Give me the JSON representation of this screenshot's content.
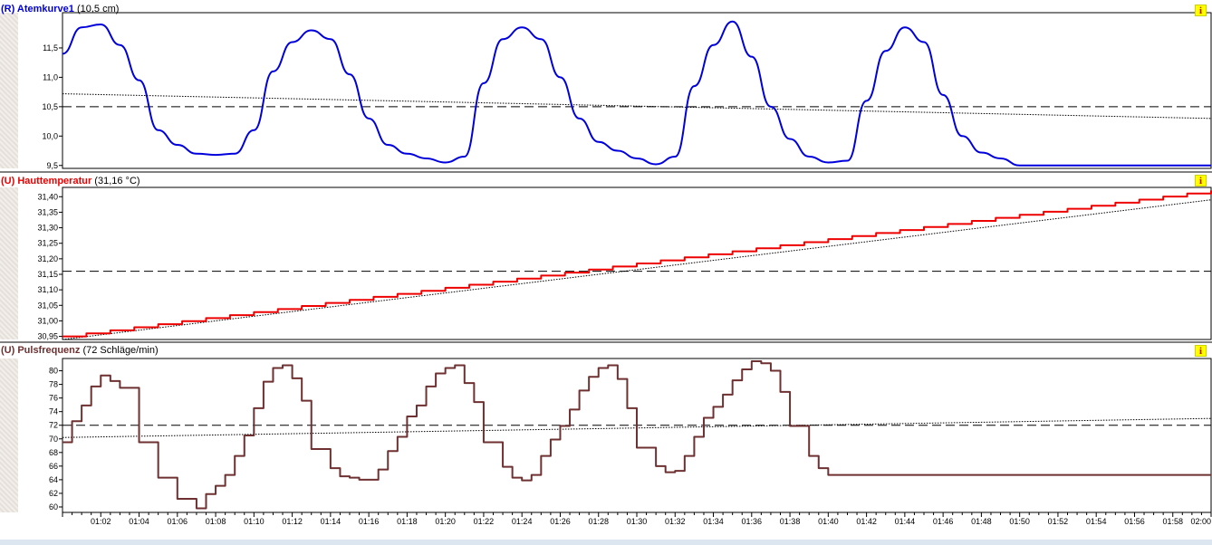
{
  "panels": [
    {
      "tag": "(R) Atemkurve1",
      "value_label": "(10,5 cm)",
      "color": "#0000dd",
      "info_label": "i",
      "marker_color": "#1a3cd8"
    },
    {
      "tag": "(U) Hauttemperatur",
      "value_label": "(31,16 °C)",
      "color": "#ee0000",
      "info_label": "i",
      "marker_color": "#d8c800"
    },
    {
      "tag": "(U) Pulsfrequenz",
      "value_label": "(72 Schläge/min)",
      "color": "#6e3030",
      "info_label": "i",
      "marker_color": "#5a2a1a"
    }
  ],
  "chart_data": [
    {
      "type": "line",
      "title": "(R) Atemkurve1",
      "unit": "cm",
      "mean": 10.5,
      "ylim": [
        9.45,
        12.1
      ],
      "yticks": [
        "9,5",
        "10,0",
        "10,5",
        "11,0",
        "11,5"
      ],
      "ytick_values": [
        9.5,
        10.0,
        10.5,
        11.0,
        11.5
      ],
      "x": [
        60,
        61,
        62,
        63,
        64,
        65,
        66,
        67,
        68,
        69,
        70,
        71,
        72,
        73,
        74,
        75,
        76,
        77,
        78,
        79,
        80,
        81,
        82,
        83,
        84,
        85,
        86,
        87,
        88,
        89,
        90,
        91,
        92,
        93,
        94,
        95,
        96,
        97,
        98,
        99,
        100,
        101,
        102,
        103,
        104,
        105,
        106,
        107,
        108,
        109,
        110,
        111,
        112,
        113,
        114,
        115,
        116,
        117,
        118,
        119,
        120
      ],
      "values": [
        11.4,
        11.85,
        11.9,
        11.55,
        10.95,
        10.1,
        9.85,
        9.7,
        9.68,
        9.7,
        10.1,
        11.1,
        11.6,
        11.8,
        11.65,
        11.05,
        10.3,
        9.85,
        9.7,
        9.62,
        9.55,
        9.65,
        10.9,
        11.65,
        11.85,
        11.65,
        11.0,
        10.3,
        9.9,
        9.75,
        9.62,
        9.52,
        9.65,
        10.85,
        11.55,
        11.95,
        11.35,
        10.5,
        9.95,
        9.65,
        9.55,
        9.58,
        10.6,
        11.45,
        11.85,
        11.6,
        10.7,
        10.0,
        9.72,
        9.62,
        9.5,
        9.5,
        9.5,
        9.5,
        9.5,
        9.5,
        9.5,
        9.5,
        9.5,
        9.5,
        9.5
      ],
      "trend": [
        10.72,
        10.3
      ]
    },
    {
      "type": "line",
      "title": "(U) Hauttemperatur",
      "unit": "°C",
      "mean": 31.16,
      "ylim": [
        30.94,
        31.43
      ],
      "yticks": [
        "30,95",
        "31,00",
        "31,05",
        "31,10",
        "31,15",
        "31,20",
        "31,25",
        "31,30",
        "31,35",
        "31,40"
      ],
      "ytick_values": [
        30.95,
        31.0,
        31.05,
        31.1,
        31.15,
        31.2,
        31.25,
        31.3,
        31.35,
        31.4
      ],
      "x": [
        60,
        120
      ],
      "values": [
        30.95,
        31.42
      ],
      "trend": [
        30.94,
        31.39
      ]
    },
    {
      "type": "line",
      "title": "(U) Pulsfrequenz",
      "unit": "Schläge/min",
      "mean": 72,
      "ylim": [
        59.2,
        81.8
      ],
      "yticks": [
        "60",
        "62",
        "64",
        "66",
        "68",
        "70",
        "72",
        "74",
        "76",
        "78",
        "80"
      ],
      "ytick_values": [
        60,
        62,
        64,
        66,
        68,
        70,
        72,
        74,
        76,
        78,
        80
      ],
      "x": [
        60,
        60.5,
        61,
        61.5,
        62,
        62.5,
        63,
        63.5,
        64,
        64.5,
        65,
        65.5,
        66,
        66.5,
        67,
        67.5,
        68,
        68.5,
        69,
        69.5,
        70,
        70.5,
        71,
        71.5,
        72,
        72.5,
        73,
        73.5,
        74,
        74.5,
        75,
        75.5,
        76,
        76.5,
        77,
        77.5,
        78,
        78.5,
        79,
        79.5,
        80,
        80.5,
        81,
        81.5,
        82,
        82.5,
        83,
        83.5,
        84,
        84.5,
        85,
        85.5,
        86,
        86.5,
        87,
        87.5,
        88,
        88.5,
        89,
        89.5,
        90,
        90.5,
        91,
        91.5,
        92,
        92.5,
        93,
        93.5,
        94,
        94.5,
        95,
        95.5,
        96,
        96.5,
        97,
        97.5,
        98,
        98.5,
        99,
        99.5,
        100,
        100.5,
        101,
        101.5,
        102,
        102.5,
        103,
        103.5,
        104,
        104.5,
        105,
        105.5,
        106,
        106.5,
        107,
        107.5,
        108,
        108.5,
        109,
        109.5,
        110,
        110.5,
        111,
        111.5,
        112,
        112.5,
        113,
        113.5,
        114,
        114.5,
        115,
        115.5,
        116,
        116.5,
        117,
        117.5,
        118,
        118.5,
        119,
        119.5
      ],
      "values": [
        69.5,
        72.6,
        74.9,
        77.7,
        79.3,
        78.5,
        77.5,
        77.5,
        69.5,
        69.5,
        64.3,
        64.3,
        61.2,
        61.2,
        59.8,
        61.9,
        63.1,
        64.7,
        67.5,
        70.5,
        74.5,
        78.4,
        80.4,
        80.8,
        78.9,
        75.6,
        68.5,
        68.5,
        65.7,
        64.5,
        64.3,
        64.0,
        64.0,
        65.5,
        68.2,
        70.3,
        73.3,
        74.9,
        77.7,
        79.6,
        80.4,
        80.8,
        78.2,
        75.4,
        69.5,
        69.5,
        65.9,
        64.3,
        63.9,
        64.7,
        67.5,
        69.9,
        71.9,
        74.3,
        77.1,
        79.1,
        80.4,
        80.8,
        78.8,
        74.5,
        68.7,
        68.7,
        66.0,
        65.1,
        65.3,
        67.5,
        70.3,
        73.1,
        74.7,
        76.5,
        78.6,
        80.2,
        81.4,
        81.1,
        80.0,
        76.9,
        71.9,
        71.9,
        67.5,
        65.7,
        64.7,
        64.7,
        64.7,
        64.7,
        64.7,
        64.7,
        64.7,
        64.7,
        64.7,
        64.7,
        64.7,
        64.7,
        64.7,
        64.7,
        64.7,
        64.7,
        64.7,
        64.7,
        64.7,
        64.7,
        64.7,
        64.7,
        64.7,
        64.7,
        64.7,
        64.7,
        64.7,
        64.7,
        64.7,
        64.7,
        64.7,
        64.7,
        64.7,
        64.7,
        64.7,
        64.7,
        64.7,
        64.7,
        64.7,
        64.7
      ],
      "trend": [
        70.2,
        73.0
      ]
    }
  ],
  "x_axis": {
    "ticks": [
      "01:02",
      "01:04",
      "01:06",
      "01:08",
      "01:10",
      "01:12",
      "01:14",
      "01:16",
      "01:18",
      "01:20",
      "01:22",
      "01:24",
      "01:26",
      "01:28",
      "01:30",
      "01:32",
      "01:34",
      "01:36",
      "01:38",
      "01:40",
      "01:42",
      "01:44",
      "01:46",
      "01:48",
      "01:50",
      "01:52",
      "01:54",
      "01:56",
      "01:58",
      "02:00"
    ],
    "tick_values": [
      62,
      64,
      66,
      68,
      70,
      72,
      74,
      76,
      78,
      80,
      82,
      84,
      86,
      88,
      90,
      92,
      94,
      96,
      98,
      100,
      102,
      104,
      106,
      108,
      110,
      112,
      114,
      116,
      118,
      120
    ],
    "range": [
      60,
      120
    ]
  }
}
